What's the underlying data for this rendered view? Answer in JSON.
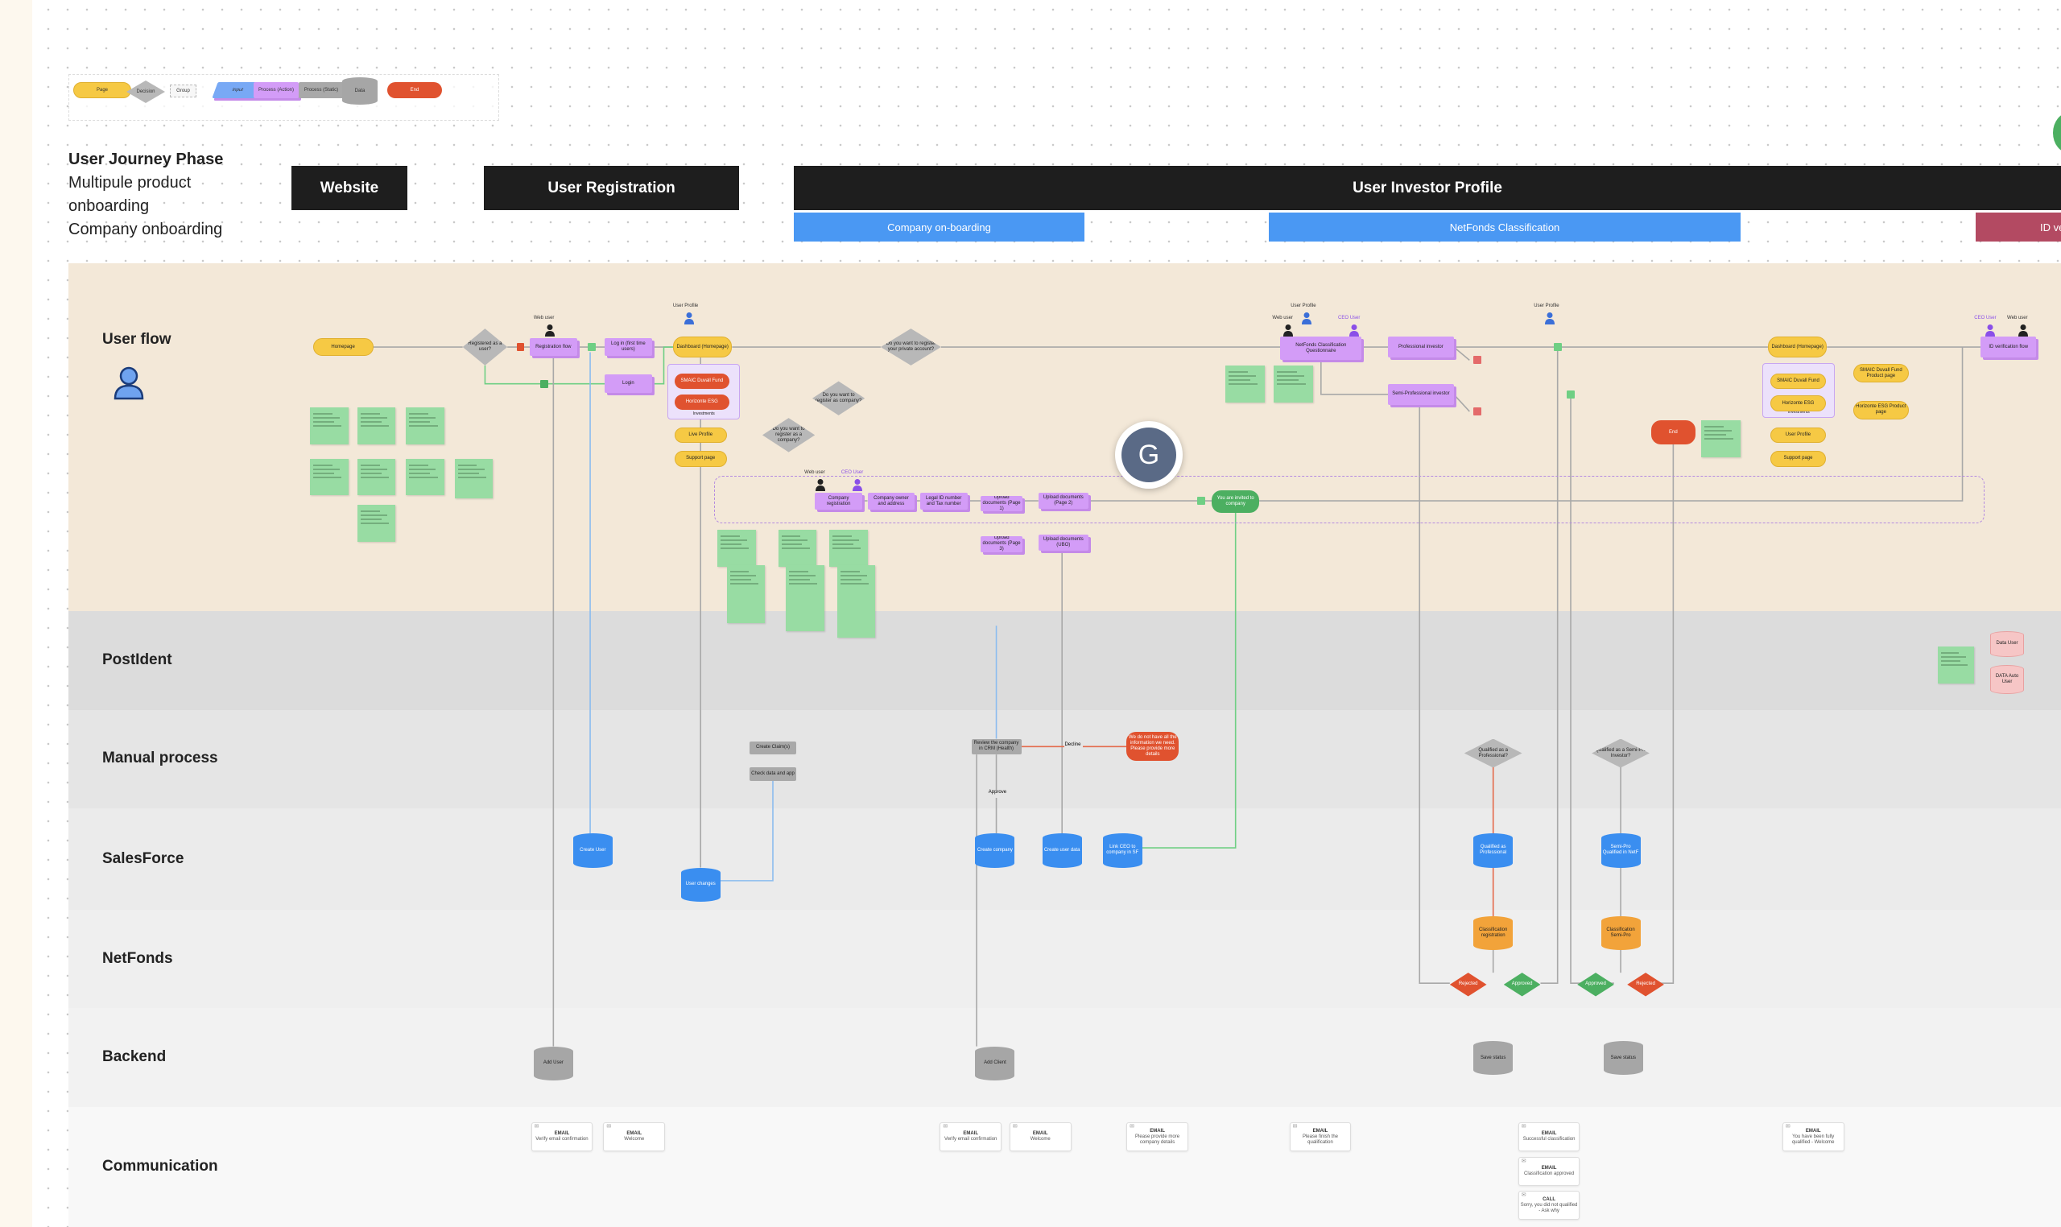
{
  "legend": [
    {
      "label": "Page",
      "type": "page"
    },
    {
      "label": "Decision",
      "type": "decision"
    },
    {
      "label": "Group",
      "type": "group"
    },
    {
      "label": "Input",
      "type": "input"
    },
    {
      "label": "Process (Action)",
      "type": "process"
    },
    {
      "label": "Process (Static)",
      "type": "static"
    },
    {
      "label": "Data",
      "type": "data"
    },
    {
      "label": "End",
      "type": "end"
    }
  ],
  "phase_label": {
    "title": "User Journey Phase",
    "lines": [
      "Multipule product",
      "onboarding",
      "Company onboarding"
    ]
  },
  "phases": [
    {
      "label": "Website"
    },
    {
      "label": "User Registration"
    },
    {
      "label": "User Investor Profile"
    }
  ],
  "sub_phases": [
    {
      "label": "Company on-boarding",
      "color": "#4a98f3"
    },
    {
      "label": "NetFonds Classification",
      "color": "#4a98f3"
    },
    {
      "label": "ID ve",
      "color": "#b34a62"
    }
  ],
  "lanes": [
    "User flow",
    "PostIdent",
    "Manual process",
    "SalesForce",
    "NetFonds",
    "Backend",
    "Communication"
  ],
  "nodes": [
    {
      "label": "Homepage",
      "type": "page"
    },
    {
      "label": "Registered as a user?",
      "type": "dec"
    },
    {
      "label": "Registration flow",
      "type": "proc"
    },
    {
      "label": "Log in (first time users)",
      "type": "proc"
    },
    {
      "label": "Login",
      "type": "proc"
    },
    {
      "label": "Dashboard (Homepage)",
      "type": "page"
    },
    {
      "label": "Investments",
      "type": "grp"
    },
    {
      "label": "SMAIC Duvall Fund",
      "type": "end"
    },
    {
      "label": "Horizonte ESG",
      "type": "end"
    },
    {
      "label": "Live Profile",
      "type": "page"
    },
    {
      "label": "Support page",
      "type": "page"
    },
    {
      "label": "Do you want to register your private account?",
      "type": "dec"
    },
    {
      "label": "Do you want to register as company?",
      "type": "dec"
    },
    {
      "label": "Do you want to register as a company?",
      "type": "dec"
    },
    {
      "label": "",
      "type": "dgrp"
    },
    {
      "label": "Company registration",
      "type": "proc"
    },
    {
      "label": "Company owner and address",
      "type": "proc"
    },
    {
      "label": "Legal ID number and Tax number",
      "type": "proc"
    },
    {
      "label": "Upload documents (Page 1)",
      "type": "proc"
    },
    {
      "label": "Upload documents (Page 2)",
      "type": "proc"
    },
    {
      "label": "Upload documents (UBO)",
      "type": "proc"
    },
    {
      "label": "Upload documents (Page 3)",
      "type": "proc"
    },
    {
      "label": "You are invited to company",
      "type": "endg"
    },
    {
      "label": "NetFonds Classification Questionnaire",
      "type": "proc"
    },
    {
      "label": "Professional investor",
      "type": "proc"
    },
    {
      "label": "Semi-Professional investor",
      "type": "proc"
    },
    {
      "label": "End",
      "type": "end"
    },
    {
      "label": "Dashboard (Homepage)",
      "type": "page"
    },
    {
      "label": "Investments",
      "type": "grp"
    },
    {
      "label": "SMAIC Duvall Fund",
      "type": "page"
    },
    {
      "label": "Horizonte ESG",
      "type": "page"
    },
    {
      "label": "User Profile",
      "type": "page"
    },
    {
      "label": "Support page",
      "type": "page"
    },
    {
      "label": "SMAIC Duvall Fund Product page",
      "type": "page"
    },
    {
      "label": "Horizonte ESG Product page",
      "type": "page"
    },
    {
      "label": "ID verification flow",
      "type": "proc"
    },
    {
      "label": "Data User",
      "type": "cyl-p"
    },
    {
      "label": "DATA Auto User",
      "type": "cyl-p"
    },
    {
      "label": "Create Claim(s)",
      "type": "static"
    },
    {
      "label": "Check data and app",
      "type": "static"
    },
    {
      "label": "Review the company in CRM (Health)",
      "type": "static"
    },
    {
      "label": "We do not have all the information we need. Please provide more details",
      "type": "end"
    },
    {
      "label": "Qualified as a Professional?",
      "type": "dec"
    },
    {
      "label": "Qualified as a Semi-Pro Investor?",
      "type": "dec"
    },
    {
      "label": "Create User",
      "type": "cyl-b"
    },
    {
      "label": "User changes",
      "type": "cyl-b"
    },
    {
      "label": "Create company",
      "type": "cyl-b"
    },
    {
      "label": "Create user data",
      "type": "cyl-b"
    },
    {
      "label": "Link CEO to company in SF",
      "type": "cyl-b"
    },
    {
      "label": "Qualified as Professional",
      "type": "cyl-b"
    },
    {
      "label": "Semi-Pro Qualified in NetF",
      "type": "cyl-b"
    },
    {
      "label": "Classification registration",
      "type": "cyl-o"
    },
    {
      "label": "Classification Semi-Pro",
      "type": "cyl-o"
    },
    {
      "label": "Rejected",
      "type": "decr"
    },
    {
      "label": "Approved",
      "type": "decg"
    },
    {
      "label": "Approved",
      "type": "decg"
    },
    {
      "label": "Rejected",
      "type": "decr"
    },
    {
      "label": "Add User",
      "type": "cyl-g"
    },
    {
      "label": "Add Client",
      "type": "cyl-g"
    },
    {
      "label": "Save status",
      "type": "cyl-g"
    },
    {
      "label": "Save status",
      "type": "cyl-g"
    }
  ],
  "edge_labels": {
    "manual_reject": "Decline",
    "manual_approve": "Approve"
  },
  "communication": [
    {
      "title": "EMAIL",
      "text": "Verify email confirmation"
    },
    {
      "title": "EMAIL",
      "text": "Welcome"
    },
    {
      "title": "EMAIL",
      "text": "Verify email confirmation"
    },
    {
      "title": "EMAIL",
      "text": "Welcome"
    },
    {
      "title": "EMAIL",
      "text": "Please provide more company details"
    },
    {
      "title": "EMAIL",
      "text": "Please finish the qualification"
    },
    {
      "title": "EMAIL",
      "text": "Successful classification"
    },
    {
      "title": "EMAIL",
      "text": "Classification approved"
    },
    {
      "title": "CALL",
      "text": "Sorry, you did not qualified - Ask why"
    },
    {
      "title": "EMAIL",
      "text": "You have been fully qualified - Welcome"
    }
  ],
  "personas": [
    {
      "label": "Web user"
    },
    {
      "label": "User Profile"
    },
    {
      "label": "Web user"
    },
    {
      "label": "CEO User"
    },
    {
      "label": "User Profile"
    },
    {
      "label": "Web user"
    },
    {
      "label": "CEO User"
    },
    {
      "label": "User Profile"
    },
    {
      "label": "CEO User"
    },
    {
      "label": "Web user"
    }
  ],
  "collaborator": {
    "initial": "G"
  },
  "colors": {
    "page": "#f6c944",
    "process": "#d39cf7",
    "end": "#e0522f",
    "data": "#3a8ef0",
    "sticky": "#98dca3",
    "user_flow_lane": "#f3e8d8"
  }
}
